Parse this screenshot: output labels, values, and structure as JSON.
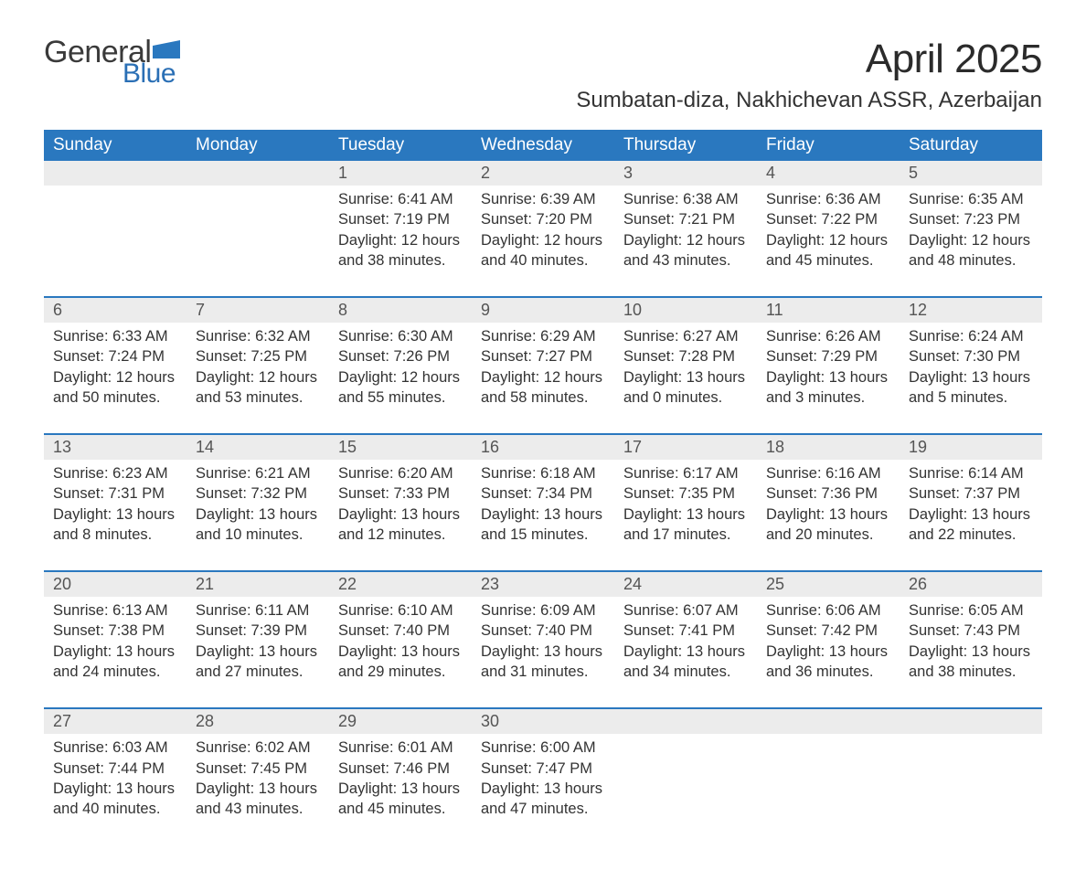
{
  "brand": {
    "word1": "General",
    "word2": "Blue",
    "logo_accent": "#2a78bf"
  },
  "title": "April 2025",
  "subtitle": "Sumbatan-diza, Nakhichevan ASSR, Azerbaijan",
  "colors": {
    "header_bg": "#2a78bf",
    "header_text": "#ffffff",
    "daterow_bg": "#ececec",
    "daterow_border": "#2a78bf",
    "body_text": "#333333",
    "daynum_text": "#555555",
    "page_bg": "#ffffff"
  },
  "columns": [
    "Sunday",
    "Monday",
    "Tuesday",
    "Wednesday",
    "Thursday",
    "Friday",
    "Saturday"
  ],
  "weeks": [
    {
      "days": [
        null,
        null,
        {
          "num": "1",
          "sunrise": "Sunrise: 6:41 AM",
          "sunset": "Sunset: 7:19 PM",
          "daylight1": "Daylight: 12 hours",
          "daylight2": "and 38 minutes."
        },
        {
          "num": "2",
          "sunrise": "Sunrise: 6:39 AM",
          "sunset": "Sunset: 7:20 PM",
          "daylight1": "Daylight: 12 hours",
          "daylight2": "and 40 minutes."
        },
        {
          "num": "3",
          "sunrise": "Sunrise: 6:38 AM",
          "sunset": "Sunset: 7:21 PM",
          "daylight1": "Daylight: 12 hours",
          "daylight2": "and 43 minutes."
        },
        {
          "num": "4",
          "sunrise": "Sunrise: 6:36 AM",
          "sunset": "Sunset: 7:22 PM",
          "daylight1": "Daylight: 12 hours",
          "daylight2": "and 45 minutes."
        },
        {
          "num": "5",
          "sunrise": "Sunrise: 6:35 AM",
          "sunset": "Sunset: 7:23 PM",
          "daylight1": "Daylight: 12 hours",
          "daylight2": "and 48 minutes."
        }
      ]
    },
    {
      "days": [
        {
          "num": "6",
          "sunrise": "Sunrise: 6:33 AM",
          "sunset": "Sunset: 7:24 PM",
          "daylight1": "Daylight: 12 hours",
          "daylight2": "and 50 minutes."
        },
        {
          "num": "7",
          "sunrise": "Sunrise: 6:32 AM",
          "sunset": "Sunset: 7:25 PM",
          "daylight1": "Daylight: 12 hours",
          "daylight2": "and 53 minutes."
        },
        {
          "num": "8",
          "sunrise": "Sunrise: 6:30 AM",
          "sunset": "Sunset: 7:26 PM",
          "daylight1": "Daylight: 12 hours",
          "daylight2": "and 55 minutes."
        },
        {
          "num": "9",
          "sunrise": "Sunrise: 6:29 AM",
          "sunset": "Sunset: 7:27 PM",
          "daylight1": "Daylight: 12 hours",
          "daylight2": "and 58 minutes."
        },
        {
          "num": "10",
          "sunrise": "Sunrise: 6:27 AM",
          "sunset": "Sunset: 7:28 PM",
          "daylight1": "Daylight: 13 hours",
          "daylight2": "and 0 minutes."
        },
        {
          "num": "11",
          "sunrise": "Sunrise: 6:26 AM",
          "sunset": "Sunset: 7:29 PM",
          "daylight1": "Daylight: 13 hours",
          "daylight2": "and 3 minutes."
        },
        {
          "num": "12",
          "sunrise": "Sunrise: 6:24 AM",
          "sunset": "Sunset: 7:30 PM",
          "daylight1": "Daylight: 13 hours",
          "daylight2": "and 5 minutes."
        }
      ]
    },
    {
      "days": [
        {
          "num": "13",
          "sunrise": "Sunrise: 6:23 AM",
          "sunset": "Sunset: 7:31 PM",
          "daylight1": "Daylight: 13 hours",
          "daylight2": "and 8 minutes."
        },
        {
          "num": "14",
          "sunrise": "Sunrise: 6:21 AM",
          "sunset": "Sunset: 7:32 PM",
          "daylight1": "Daylight: 13 hours",
          "daylight2": "and 10 minutes."
        },
        {
          "num": "15",
          "sunrise": "Sunrise: 6:20 AM",
          "sunset": "Sunset: 7:33 PM",
          "daylight1": "Daylight: 13 hours",
          "daylight2": "and 12 minutes."
        },
        {
          "num": "16",
          "sunrise": "Sunrise: 6:18 AM",
          "sunset": "Sunset: 7:34 PM",
          "daylight1": "Daylight: 13 hours",
          "daylight2": "and 15 minutes."
        },
        {
          "num": "17",
          "sunrise": "Sunrise: 6:17 AM",
          "sunset": "Sunset: 7:35 PM",
          "daylight1": "Daylight: 13 hours",
          "daylight2": "and 17 minutes."
        },
        {
          "num": "18",
          "sunrise": "Sunrise: 6:16 AM",
          "sunset": "Sunset: 7:36 PM",
          "daylight1": "Daylight: 13 hours",
          "daylight2": "and 20 minutes."
        },
        {
          "num": "19",
          "sunrise": "Sunrise: 6:14 AM",
          "sunset": "Sunset: 7:37 PM",
          "daylight1": "Daylight: 13 hours",
          "daylight2": "and 22 minutes."
        }
      ]
    },
    {
      "days": [
        {
          "num": "20",
          "sunrise": "Sunrise: 6:13 AM",
          "sunset": "Sunset: 7:38 PM",
          "daylight1": "Daylight: 13 hours",
          "daylight2": "and 24 minutes."
        },
        {
          "num": "21",
          "sunrise": "Sunrise: 6:11 AM",
          "sunset": "Sunset: 7:39 PM",
          "daylight1": "Daylight: 13 hours",
          "daylight2": "and 27 minutes."
        },
        {
          "num": "22",
          "sunrise": "Sunrise: 6:10 AM",
          "sunset": "Sunset: 7:40 PM",
          "daylight1": "Daylight: 13 hours",
          "daylight2": "and 29 minutes."
        },
        {
          "num": "23",
          "sunrise": "Sunrise: 6:09 AM",
          "sunset": "Sunset: 7:40 PM",
          "daylight1": "Daylight: 13 hours",
          "daylight2": "and 31 minutes."
        },
        {
          "num": "24",
          "sunrise": "Sunrise: 6:07 AM",
          "sunset": "Sunset: 7:41 PM",
          "daylight1": "Daylight: 13 hours",
          "daylight2": "and 34 minutes."
        },
        {
          "num": "25",
          "sunrise": "Sunrise: 6:06 AM",
          "sunset": "Sunset: 7:42 PM",
          "daylight1": "Daylight: 13 hours",
          "daylight2": "and 36 minutes."
        },
        {
          "num": "26",
          "sunrise": "Sunrise: 6:05 AM",
          "sunset": "Sunset: 7:43 PM",
          "daylight1": "Daylight: 13 hours",
          "daylight2": "and 38 minutes."
        }
      ]
    },
    {
      "days": [
        {
          "num": "27",
          "sunrise": "Sunrise: 6:03 AM",
          "sunset": "Sunset: 7:44 PM",
          "daylight1": "Daylight: 13 hours",
          "daylight2": "and 40 minutes."
        },
        {
          "num": "28",
          "sunrise": "Sunrise: 6:02 AM",
          "sunset": "Sunset: 7:45 PM",
          "daylight1": "Daylight: 13 hours",
          "daylight2": "and 43 minutes."
        },
        {
          "num": "29",
          "sunrise": "Sunrise: 6:01 AM",
          "sunset": "Sunset: 7:46 PM",
          "daylight1": "Daylight: 13 hours",
          "daylight2": "and 45 minutes."
        },
        {
          "num": "30",
          "sunrise": "Sunrise: 6:00 AM",
          "sunset": "Sunset: 7:47 PM",
          "daylight1": "Daylight: 13 hours",
          "daylight2": "and 47 minutes."
        },
        null,
        null,
        null
      ]
    }
  ]
}
